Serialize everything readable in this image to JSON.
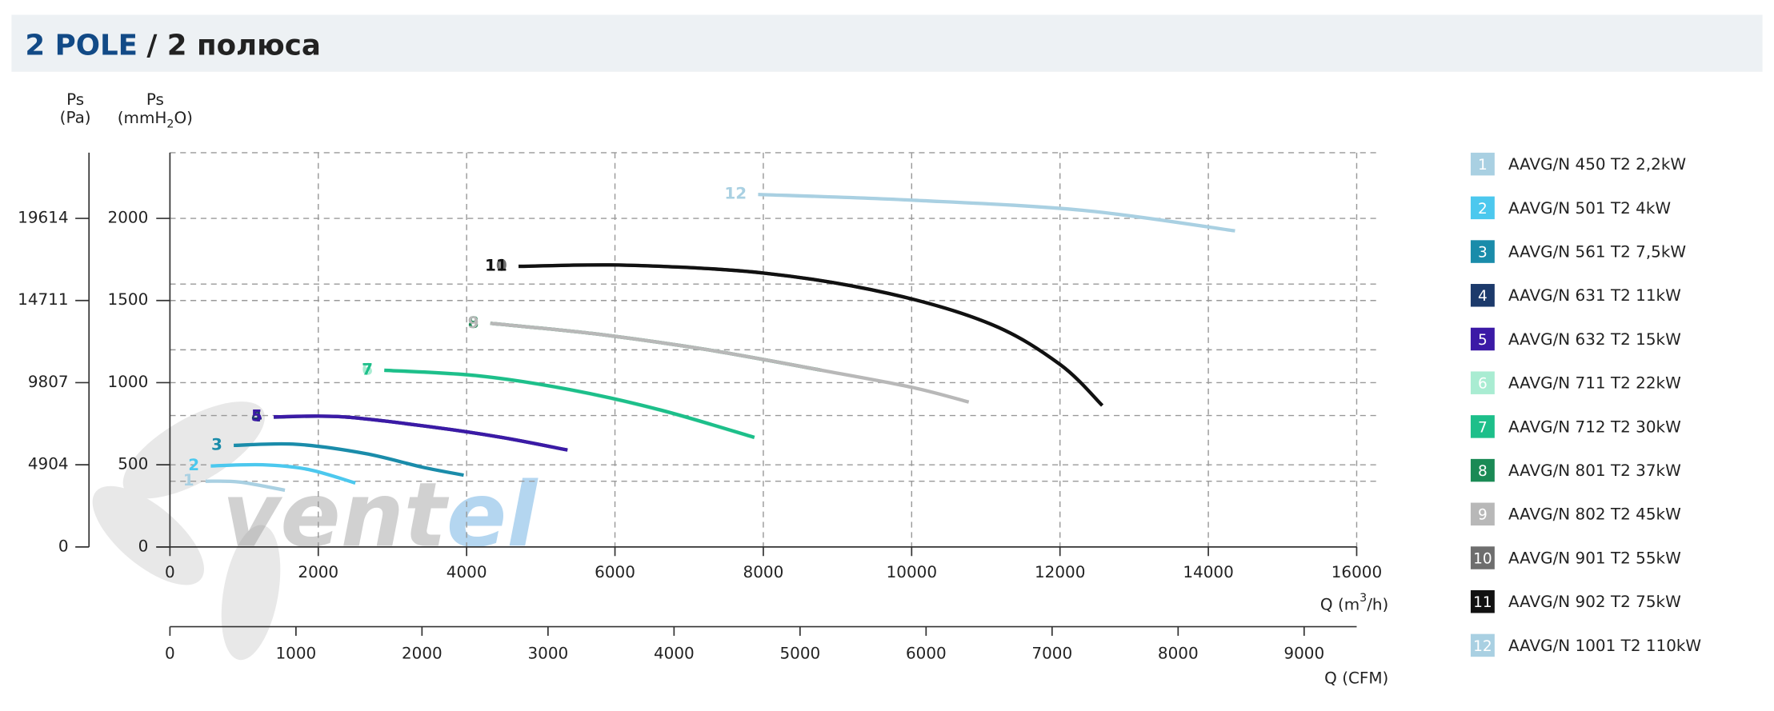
{
  "chart_data": {
    "type": "line",
    "title": "2 POLE",
    "title_suffix": "/ 2 полюса",
    "ylabel": [
      "Ps",
      "(mmH",
      "2",
      "O)"
    ],
    "y2label": [
      "Ps",
      "(Pa)"
    ],
    "xlabel": [
      "Q (m",
      "3",
      "/h)"
    ],
    "x2label": "Q (CFM)",
    "watermark": [
      "vent",
      "el"
    ],
    "xlim": [
      0,
      16000
    ],
    "xticks": [
      0,
      2000,
      4000,
      6000,
      8000,
      10000,
      12000,
      14000,
      16000
    ],
    "x2lim": [
      0,
      9417
    ],
    "x2ticks": [
      0,
      1000,
      2000,
      3000,
      4000,
      5000,
      6000,
      7000,
      8000,
      9000
    ],
    "ylim": [
      0,
      2400
    ],
    "yticks": [
      0,
      500,
      1000,
      1500,
      2000
    ],
    "y2lim": [
      0,
      23537
    ],
    "y2ticks": [
      0,
      4904,
      9807,
      14711,
      19614
    ],
    "grid": true,
    "grid_y": [
      400,
      800,
      1200,
      1600,
      2400
    ],
    "series": [
      {
        "label": "1",
        "name": "AAVG/N 450 T2 2,2kW",
        "color": "#a9d0e2",
        "x": [
          480,
          940,
          1550
        ],
        "values": [
          400,
          395,
          345
        ]
      },
      {
        "label": "2",
        "name": "AAVG/N 501 T2 4kW",
        "color": "#4cc8ee",
        "x": [
          550,
          1250,
          1860,
          2500
        ],
        "values": [
          493,
          500,
          472,
          389
        ]
      },
      {
        "label": "3",
        "name": "AAVG/N 561 T2 7,5kW",
        "color": "#1a8caa",
        "x": [
          860,
          1700,
          2630,
          3400,
          3960
        ],
        "values": [
          618,
          625,
          569,
          486,
          437
        ]
      },
      {
        "label": "4",
        "name": "AAVG/N 631 T2 11kW",
        "color": "#1c3a6b",
        "x": [
          1400,
          2320,
          3550,
          4470,
          5360
        ],
        "values": [
          790,
          792,
          729,
          667,
          590
        ]
      },
      {
        "label": "5",
        "name": "AAVG/N 632 T2 15kW",
        "color": "#3b1aa6",
        "x": [
          1400,
          2320,
          3550,
          4470,
          5360
        ],
        "values": [
          792,
          792,
          729,
          667,
          590
        ]
      },
      {
        "label": "6",
        "name": "AAVG/N 711 T2 22kW",
        "color": "#a9ecd2",
        "x": [
          2890,
          4160,
          5390,
          6620,
          7880
        ],
        "values": [
          1074,
          1040,
          956,
          831,
          665
        ]
      },
      {
        "label": "7",
        "name": "AAVG/N 712 T2 30kW",
        "color": "#1dbf8a",
        "x": [
          2890,
          4160,
          5390,
          6620,
          7880
        ],
        "values": [
          1076,
          1042,
          958,
          833,
          667
        ]
      },
      {
        "label": "8",
        "name": "AAVG/N 801 T2 37kW",
        "color": "#1a8a55",
        "x": [
          4320,
          5700,
          7240,
          8780
        ],
        "values": [
          1361,
          1299,
          1201,
          1076
        ]
      },
      {
        "label": "9",
        "name": "AAVG/N 802 T2 45kW",
        "color": "#b8b8b8",
        "x": [
          4320,
          5700,
          7240,
          8780,
          10000,
          10770
        ],
        "values": [
          1361,
          1299,
          1201,
          1076,
          972,
          882
        ]
      },
      {
        "label": "10",
        "name": "AAVG/N 901 T2 55kW",
        "color": "#6e6e6e",
        "x": [
          4700,
          6160,
          8010,
          9700,
          11080,
          12000,
          12570
        ],
        "values": [
          1708,
          1715,
          1667,
          1542,
          1354,
          1111,
          861
        ]
      },
      {
        "label": "11",
        "name": "AAVG/N 902 T2 75kW",
        "color": "#111111",
        "x": [
          4700,
          6160,
          8010,
          9700,
          11080,
          12000,
          12570
        ],
        "values": [
          1708,
          1715,
          1667,
          1542,
          1354,
          1111,
          861
        ]
      },
      {
        "label": "12",
        "name": "AAVG/N 1001 T2 110kW",
        "color": "#a9d0e2",
        "x": [
          7930,
          10000,
          12310,
          14360
        ],
        "values": [
          2146,
          2111,
          2049,
          1924
        ]
      }
    ]
  }
}
